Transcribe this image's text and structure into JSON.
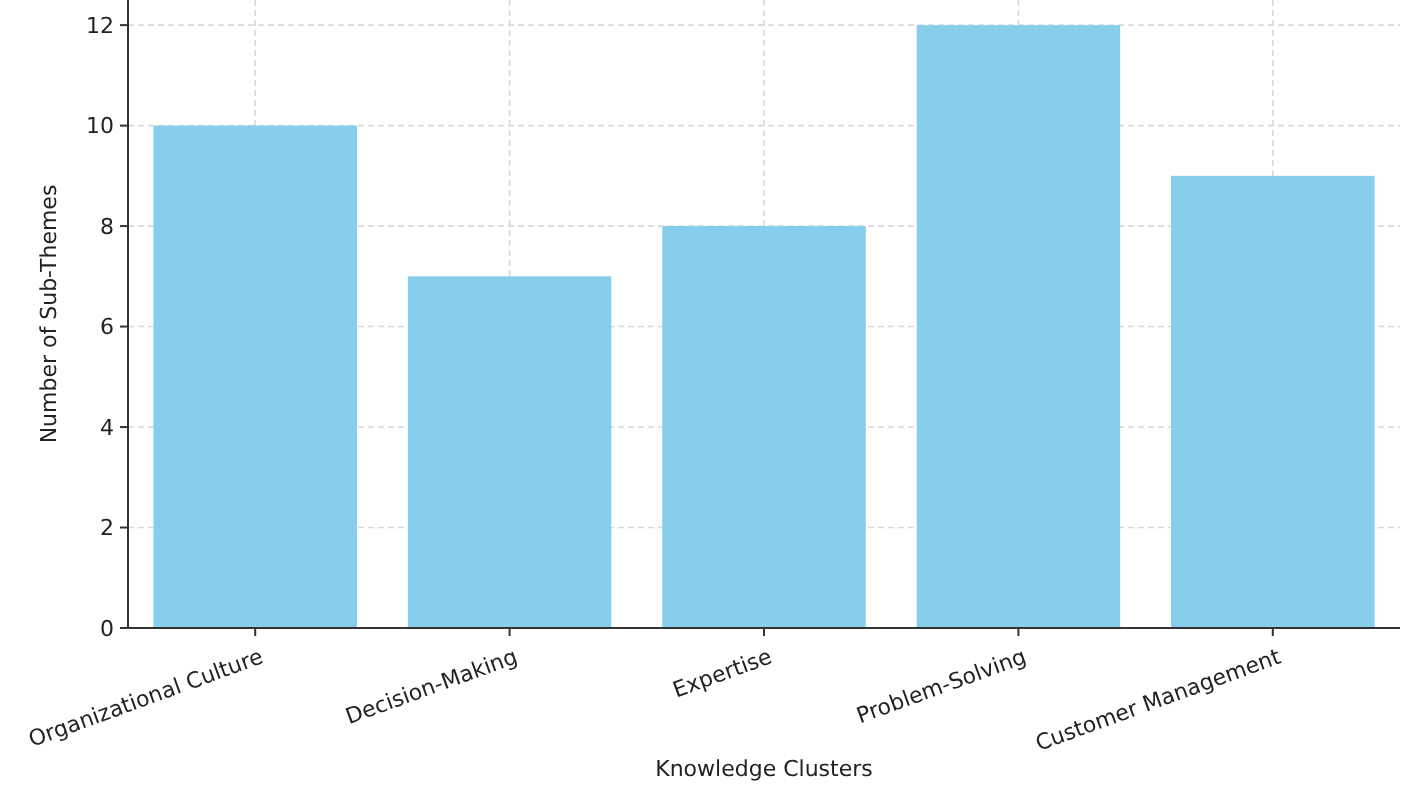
{
  "chart_data": {
    "type": "bar",
    "xlabel": "Knowledge Clusters",
    "ylabel": "Number of Sub-Themes",
    "categories": [
      "Organizational Culture",
      "Decision-Making",
      "Expertise",
      "Problem-Solving",
      "Customer Management"
    ],
    "values": [
      10,
      7,
      8,
      12,
      9
    ],
    "color": "#87ceeb",
    "ylim": [
      0,
      12.5
    ],
    "yticks": [
      0,
      2,
      4,
      6,
      8,
      10,
      12
    ],
    "grid": true
  }
}
